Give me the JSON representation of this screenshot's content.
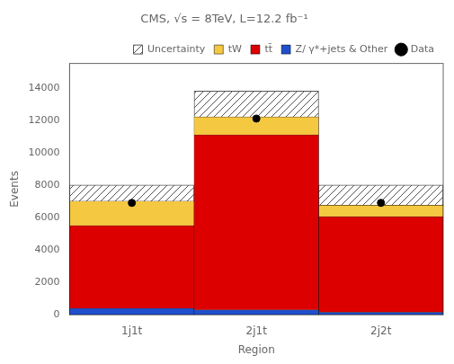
{
  "chart_data": {
    "type": "bar",
    "stacked": true,
    "title": "CMS, √s = 8TeV, L=12.2 fb⁻¹",
    "xlabel": "Region",
    "ylabel": "Events",
    "categories": [
      "1j1t",
      "2j1t",
      "2j2t"
    ],
    "series": [
      {
        "name": "Z/ γ*+jets\n& Other",
        "type": "bar",
        "color": "#1f4fcc",
        "values": [
          400,
          300,
          150
        ]
      },
      {
        "name": "tt̄",
        "type": "bar",
        "color": "#dd0000",
        "values": [
          5100,
          10800,
          5900
        ]
      },
      {
        "name": "tW",
        "type": "bar",
        "color": "#f5c842",
        "values": [
          1500,
          1100,
          700
        ]
      },
      {
        "name": "Uncertainty",
        "type": "hatched_bar",
        "color": "#555555",
        "values": [
          1000,
          1600,
          1250
        ]
      },
      {
        "name": "Data",
        "type": "scatter",
        "color": "#000000",
        "marker": "circle",
        "values": [
          6900,
          12100,
          6900
        ]
      }
    ],
    "ylim": [
      0,
      15500
    ],
    "yticks": [
      0,
      2000,
      4000,
      6000,
      8000,
      10000,
      12000,
      14000
    ],
    "grid": false,
    "legend": "upper right"
  }
}
